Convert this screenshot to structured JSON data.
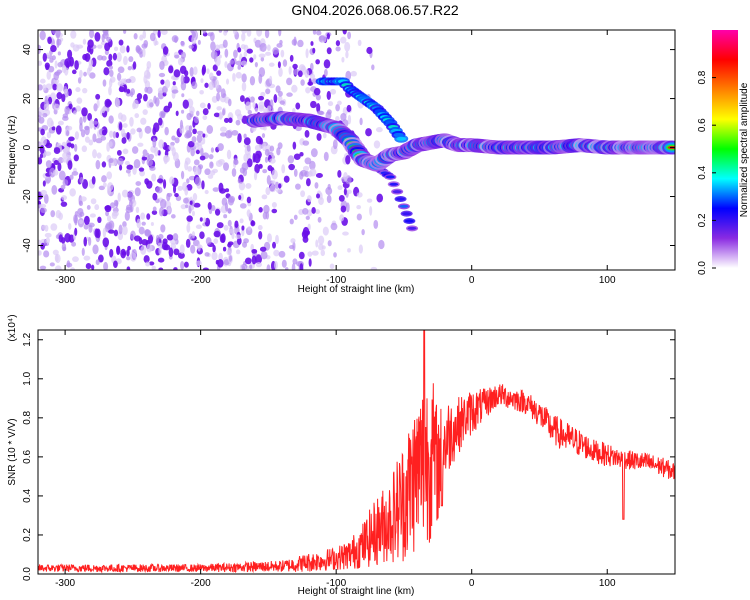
{
  "title": "GN04.2026.068.06.57.R22",
  "chart_data": [
    {
      "type": "heatmap",
      "xlabel": "Height of straight line (km)",
      "ylabel": "Frequency (Hz)",
      "xlim": [
        -320,
        150
      ],
      "ylim": [
        -50,
        48
      ],
      "xticks": [
        -300,
        -200,
        -100,
        0,
        100
      ],
      "yticks": [
        -40,
        -20,
        0,
        20,
        40
      ],
      "colorbar": {
        "label": "Normalized spectral amplitude",
        "range": [
          0.0,
          1.0
        ],
        "ticks": [
          0.0,
          0.2,
          0.4,
          0.6,
          0.8
        ],
        "colors": [
          "#ffffff",
          "#8a2be2",
          "#0000ff",
          "#00ffff",
          "#00ff00",
          "#ffff00",
          "#ff8000",
          "#ff0000",
          "#ff00aa"
        ]
      },
      "features": {
        "noise_region_x": [
          -320,
          -90
        ],
        "main_track": [
          [
            -160,
            11
          ],
          [
            -140,
            12
          ],
          [
            -120,
            11
          ],
          [
            -100,
            8
          ],
          [
            -90,
            3
          ],
          [
            -80,
            -5
          ],
          [
            -70,
            -7
          ],
          [
            -60,
            -3
          ],
          [
            -50,
            -2
          ],
          [
            -40,
            1
          ],
          [
            -30,
            2
          ],
          [
            -20,
            3
          ],
          [
            -10,
            1
          ],
          [
            0,
            1
          ],
          [
            20,
            0
          ],
          [
            40,
            0
          ],
          [
            60,
            0
          ],
          [
            80,
            1
          ],
          [
            100,
            0
          ],
          [
            120,
            0
          ],
          [
            150,
            0
          ]
        ],
        "upper_branch": [
          [
            -110,
            27
          ],
          [
            -95,
            27
          ],
          [
            -90,
            24
          ],
          [
            -80,
            20
          ],
          [
            -70,
            16
          ],
          [
            -60,
            10
          ],
          [
            -50,
            2
          ]
        ],
        "lower_tail": [
          [
            -70,
            -8
          ],
          [
            -60,
            -12
          ],
          [
            -55,
            -18
          ],
          [
            -50,
            -24
          ],
          [
            -42,
            -36
          ]
        ]
      }
    },
    {
      "type": "line",
      "xlabel": "Height of straight line (km)",
      "ylabel": "SNR (10 * V/V)",
      "y_multiplier": "(x10⁴)",
      "xlim": [
        -320,
        150
      ],
      "ylim": [
        0.0,
        1.25
      ],
      "xticks": [
        -300,
        -200,
        -100,
        0,
        100
      ],
      "yticks": [
        0.0,
        0.2,
        0.4,
        0.6,
        0.8,
        1.0,
        1.2
      ],
      "color": "#ff2020",
      "envelope": {
        "x": [
          -320,
          -200,
          -140,
          -120,
          -100,
          -90,
          -80,
          -70,
          -60,
          -55,
          -50,
          -45,
          -40,
          -35,
          -30,
          -25,
          -20,
          -15,
          -10,
          -5,
          0,
          5,
          10,
          15,
          20,
          25,
          30,
          40,
          50,
          60,
          70,
          80,
          90,
          100,
          110,
          120,
          130,
          140,
          150
        ],
        "y": [
          0.03,
          0.03,
          0.04,
          0.06,
          0.08,
          0.1,
          0.15,
          0.22,
          0.28,
          0.33,
          0.38,
          0.45,
          0.53,
          0.58,
          0.62,
          0.55,
          0.67,
          0.73,
          0.76,
          0.8,
          0.83,
          0.85,
          0.87,
          0.9,
          0.92,
          0.91,
          0.9,
          0.88,
          0.82,
          0.74,
          0.7,
          0.67,
          0.63,
          0.61,
          0.59,
          0.58,
          0.57,
          0.55,
          0.52
        ],
        "noise": [
          0.02,
          0.02,
          0.03,
          0.05,
          0.06,
          0.08,
          0.12,
          0.18,
          0.22,
          0.28,
          0.32,
          0.38,
          0.4,
          0.45,
          0.45,
          0.3,
          0.22,
          0.18,
          0.15,
          0.12,
          0.12,
          0.1,
          0.08,
          0.07,
          0.06,
          0.06,
          0.06,
          0.06,
          0.07,
          0.08,
          0.08,
          0.07,
          0.06,
          0.06,
          0.05,
          0.05,
          0.05,
          0.05,
          0.05
        ]
      },
      "peak": {
        "x": -35,
        "y": 1.25
      },
      "dips": [
        {
          "x": -22,
          "y": 0.35
        },
        {
          "x": 112,
          "y": 0.28
        }
      ]
    }
  ]
}
